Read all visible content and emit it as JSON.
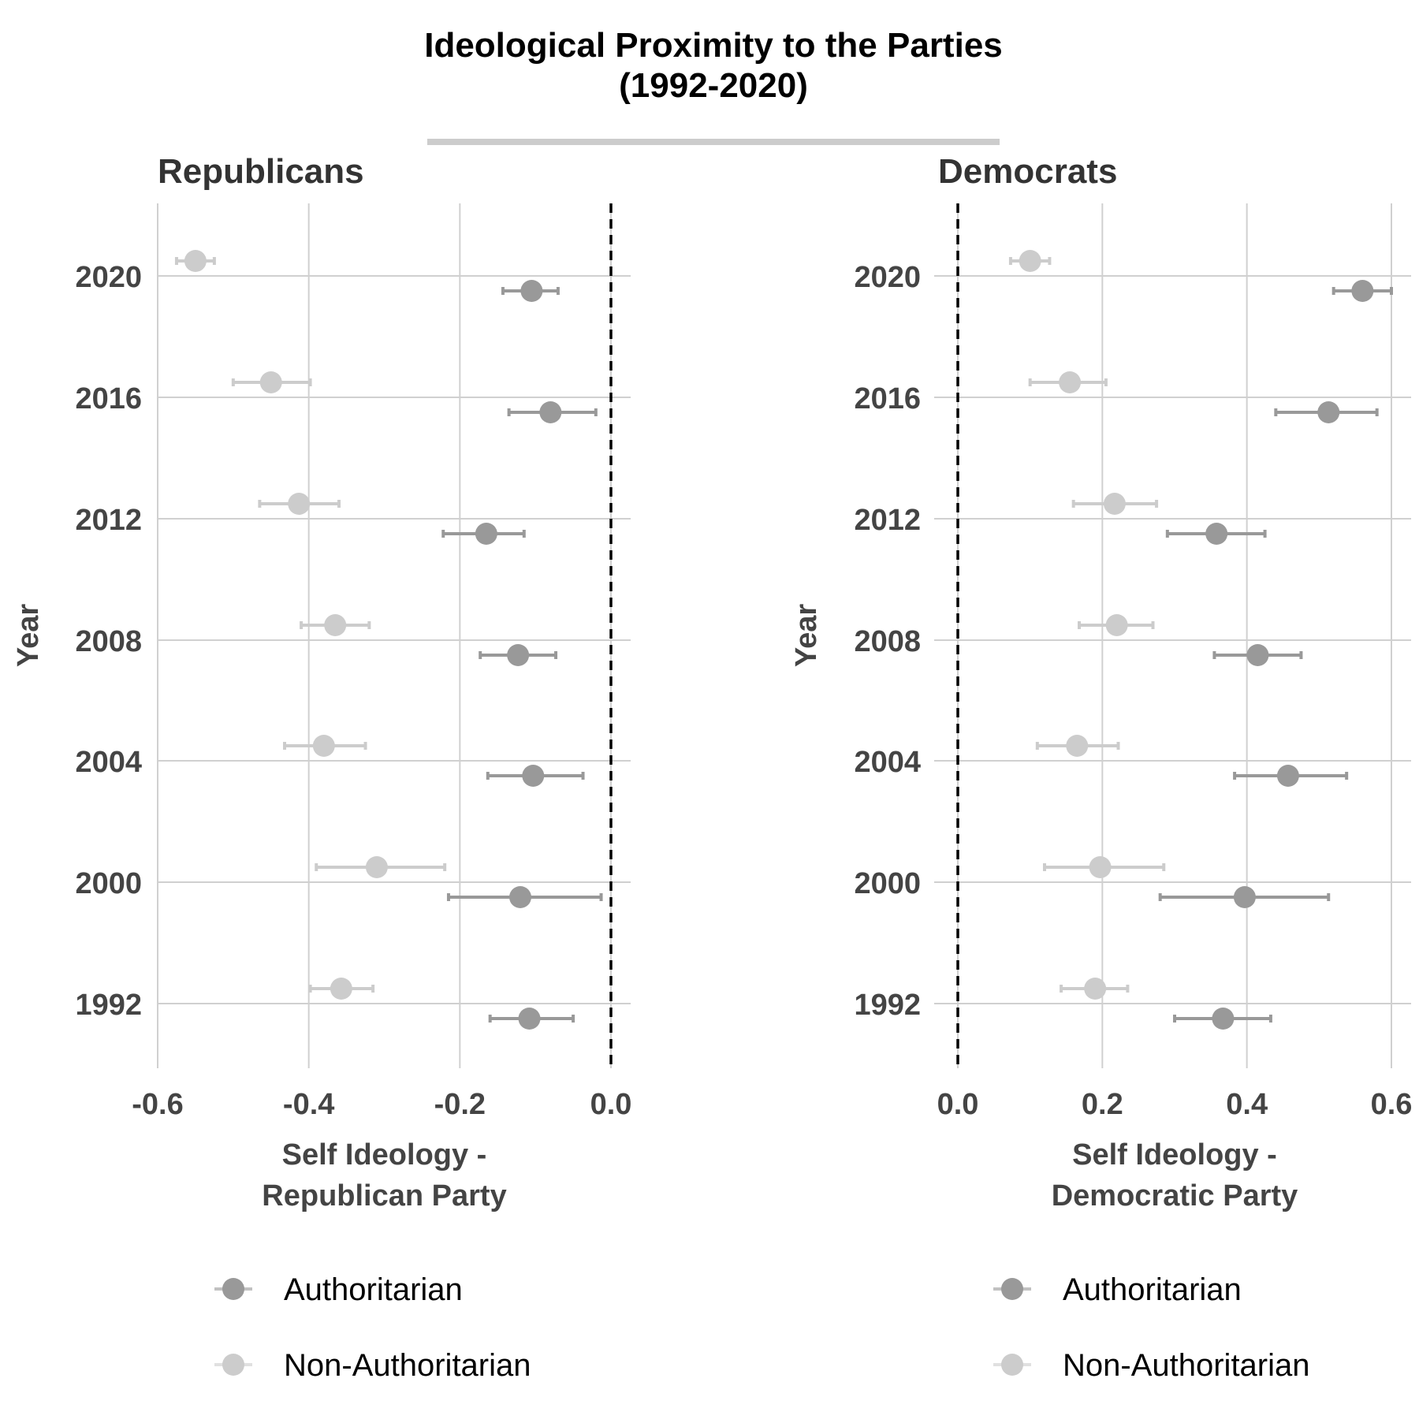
{
  "chart_data": {
    "type": "scatter",
    "title": "Ideological Proximity to the Parties",
    "subtitle": "(1992-2020)",
    "colors": {
      "Authoritarian": "#999999",
      "Non-Authoritarian": "#cccccc",
      "reference_line": "#000000",
      "grid": "#d0d0d0",
      "title_underline": "#cccccc"
    },
    "panels": [
      {
        "title": "Republicans",
        "xlabel_lines": [
          "Self Ideology -",
          "Republican Party"
        ],
        "ylabel": "Year",
        "xlim": [
          -0.6,
          0.02
        ],
        "x_ticks": [
          "-0.6",
          "-0.4",
          "-0.2",
          "0.0"
        ],
        "y_ticks": [
          "1992",
          "2000",
          "2004",
          "2008",
          "2012",
          "2016",
          "2020"
        ],
        "reference_x": 0.0,
        "legend": {
          "position": "bottom",
          "entries": [
            "Authoritarian",
            "Non-Authoritarian"
          ]
        },
        "series": [
          {
            "name": "Authoritarian",
            "points": [
              {
                "year": "2020",
                "x": -0.105,
                "lo": -0.143,
                "hi": -0.07
              },
              {
                "year": "2016",
                "x": -0.08,
                "lo": -0.135,
                "hi": -0.02
              },
              {
                "year": "2012",
                "x": -0.165,
                "lo": -0.222,
                "hi": -0.115
              },
              {
                "year": "2008",
                "x": -0.123,
                "lo": -0.173,
                "hi": -0.073
              },
              {
                "year": "2004",
                "x": -0.103,
                "lo": -0.163,
                "hi": -0.037
              },
              {
                "year": "2000",
                "x": -0.12,
                "lo": -0.215,
                "hi": -0.013
              },
              {
                "year": "1992",
                "x": -0.108,
                "lo": -0.16,
                "hi": -0.05
              }
            ]
          },
          {
            "name": "Non-Authoritarian",
            "points": [
              {
                "year": "2020",
                "x": -0.55,
                "lo": -0.575,
                "hi": -0.525
              },
              {
                "year": "2016",
                "x": -0.45,
                "lo": -0.5,
                "hi": -0.398
              },
              {
                "year": "2012",
                "x": -0.413,
                "lo": -0.465,
                "hi": -0.36
              },
              {
                "year": "2008",
                "x": -0.365,
                "lo": -0.41,
                "hi": -0.32
              },
              {
                "year": "2004",
                "x": -0.38,
                "lo": -0.432,
                "hi": -0.325
              },
              {
                "year": "2000",
                "x": -0.31,
                "lo": -0.39,
                "hi": -0.22
              },
              {
                "year": "1992",
                "x": -0.357,
                "lo": -0.398,
                "hi": -0.315
              }
            ]
          }
        ]
      },
      {
        "title": "Democrats",
        "xlabel_lines": [
          "Self Ideology -",
          "Democratic Party"
        ],
        "ylabel": "Year",
        "xlim": [
          0.0,
          0.6
        ],
        "x_ticks": [
          "0.0",
          "0.2",
          "0.4",
          "0.6"
        ],
        "y_ticks": [
          "1992",
          "2000",
          "2004",
          "2008",
          "2012",
          "2016",
          "2020"
        ],
        "reference_x": 0.0,
        "legend": {
          "position": "bottom",
          "entries": [
            "Authoritarian",
            "Non-Authoritarian"
          ]
        },
        "series": [
          {
            "name": "Authoritarian",
            "points": [
              {
                "year": "2020",
                "x": 0.56,
                "lo": 0.52,
                "hi": 0.6
              },
              {
                "year": "2016",
                "x": 0.513,
                "lo": 0.44,
                "hi": 0.58
              },
              {
                "year": "2012",
                "x": 0.358,
                "lo": 0.29,
                "hi": 0.425
              },
              {
                "year": "2008",
                "x": 0.415,
                "lo": 0.355,
                "hi": 0.475
              },
              {
                "year": "2004",
                "x": 0.457,
                "lo": 0.383,
                "hi": 0.538
              },
              {
                "year": "2000",
                "x": 0.397,
                "lo": 0.28,
                "hi": 0.513
              },
              {
                "year": "1992",
                "x": 0.367,
                "lo": 0.3,
                "hi": 0.433
              }
            ]
          },
          {
            "name": "Non-Authoritarian",
            "points": [
              {
                "year": "2020",
                "x": 0.1,
                "lo": 0.073,
                "hi": 0.127
              },
              {
                "year": "2016",
                "x": 0.155,
                "lo": 0.1,
                "hi": 0.205
              },
              {
                "year": "2012",
                "x": 0.217,
                "lo": 0.16,
                "hi": 0.275
              },
              {
                "year": "2008",
                "x": 0.22,
                "lo": 0.168,
                "hi": 0.27
              },
              {
                "year": "2004",
                "x": 0.165,
                "lo": 0.11,
                "hi": 0.222
              },
              {
                "year": "2000",
                "x": 0.197,
                "lo": 0.12,
                "hi": 0.285
              },
              {
                "year": "1992",
                "x": 0.19,
                "lo": 0.143,
                "hi": 0.235
              }
            ]
          }
        ]
      }
    ]
  }
}
